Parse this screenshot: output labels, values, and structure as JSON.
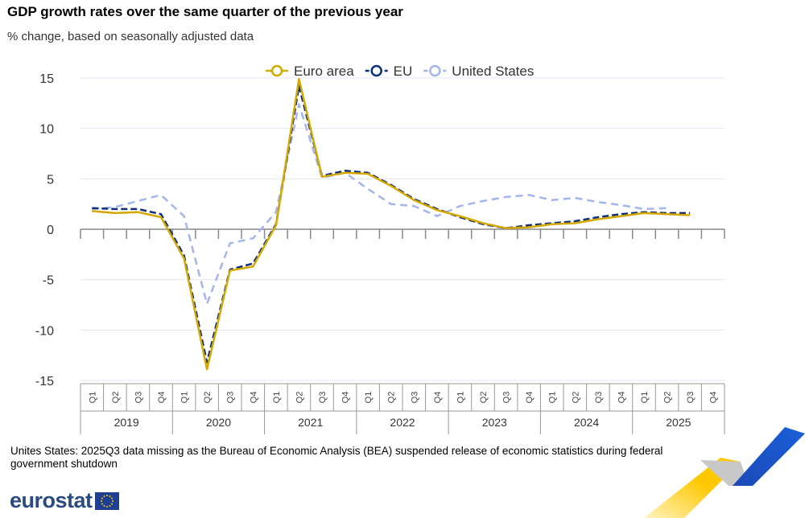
{
  "chart_data": {
    "type": "line",
    "title": "GDP growth rates over the same quarter of the previous year",
    "subtitle": "% change, based on seasonally adjusted data",
    "years": [
      "2019",
      "2020",
      "2021",
      "2022",
      "2023",
      "2024",
      "2025"
    ],
    "quarters": [
      "Q1",
      "Q2",
      "Q3",
      "Q4"
    ],
    "ylim": [
      -15,
      15
    ],
    "yticks": [
      15,
      10,
      5,
      0,
      -5,
      -10,
      -15
    ],
    "grid": true,
    "legend_position": "top",
    "series": [
      {
        "name": "Euro area",
        "color": "#d4a800",
        "dash": "solid",
        "values": [
          1.8,
          1.6,
          1.7,
          1.2,
          -2.9,
          -13.9,
          -4.1,
          -3.7,
          0.4,
          14.9,
          5.2,
          5.6,
          5.5,
          4.3,
          2.9,
          1.9,
          1.3,
          0.6,
          0.1,
          0.2,
          0.5,
          0.6,
          1.0,
          1.3,
          1.6,
          1.5,
          1.4,
          null
        ]
      },
      {
        "name": "EU",
        "color": "#0e2f7a",
        "dash": "dashed",
        "values": [
          2.1,
          2.0,
          2.0,
          1.5,
          -2.6,
          -13.2,
          -4.0,
          -3.4,
          0.5,
          14.2,
          5.3,
          5.8,
          5.6,
          4.4,
          3.0,
          2.0,
          1.2,
          0.5,
          0.1,
          0.4,
          0.6,
          0.8,
          1.2,
          1.5,
          1.7,
          1.6,
          1.6,
          null
        ]
      },
      {
        "name": "United States",
        "color": "#a3b5ea",
        "dash": "dashed",
        "values": [
          2.0,
          2.2,
          2.8,
          3.4,
          1.3,
          -7.4,
          -1.4,
          -0.9,
          1.7,
          12.4,
          5.1,
          5.6,
          4.0,
          2.5,
          2.3,
          1.3,
          2.3,
          2.8,
          3.2,
          3.4,
          2.9,
          3.1,
          2.7,
          2.4,
          2.0,
          2.1,
          null,
          null
        ]
      }
    ]
  },
  "footnote": "Unites States: 2025Q3 data missing as the Bureau of Economic Analysis (BEA) suspended release of economic statistics during federal government shutdown",
  "logo": "eurostat"
}
